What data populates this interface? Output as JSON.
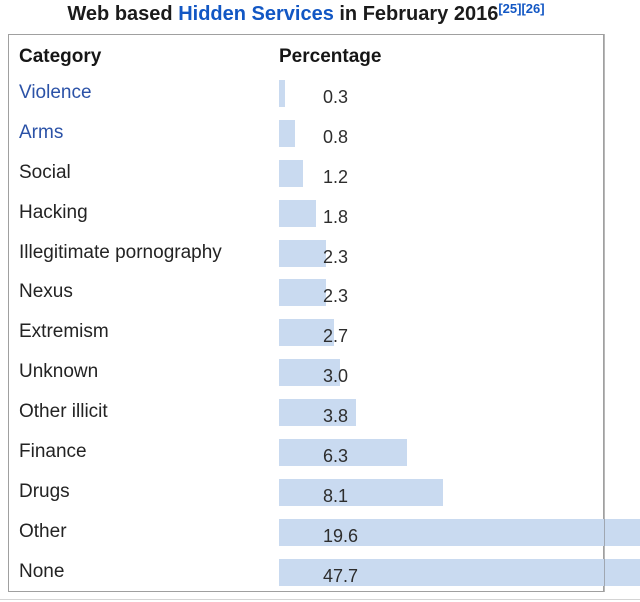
{
  "title": {
    "prefix": "Web based ",
    "link_text": "Hidden Services",
    "suffix": " in February 2016",
    "ref1": "[25]",
    "ref2": "[26]"
  },
  "table": {
    "headers": {
      "category": "Category",
      "percentage": "Percentage"
    }
  },
  "chart_data": {
    "type": "bar",
    "orientation": "horizontal",
    "title": "Web based Hidden Services in February 2016",
    "categories": [
      "Violence",
      "Arms",
      "Social",
      "Hacking",
      "Illegitimate pornography",
      "Nexus",
      "Extremism",
      "Unknown",
      "Other illicit",
      "Finance",
      "Drugs",
      "Other",
      "None"
    ],
    "values": [
      0.3,
      0.8,
      1.2,
      1.8,
      2.3,
      2.3,
      2.7,
      3.0,
      3.8,
      6.3,
      8.1,
      19.6,
      47.7
    ],
    "value_labels": [
      "0.3",
      "0.8",
      "1.2",
      "1.8",
      "2.3",
      "2.3",
      "2.7",
      "3.0",
      "3.8",
      "6.3",
      "8.1",
      "19.6",
      "47.7"
    ],
    "linked_categories": [
      "Violence",
      "Arms"
    ],
    "xlabel": "Percentage",
    "ylabel": "Category",
    "legend": "none",
    "grid": "off",
    "note": "Bars for Other and None overflow past the table right border and are clipped at the image edge"
  },
  "colors": {
    "bar": "#c9daf0",
    "title_link": "#1257c4",
    "category_link": "#2b52a7",
    "table_border": "#a0a0a0",
    "text": "#1f1f1f"
  }
}
